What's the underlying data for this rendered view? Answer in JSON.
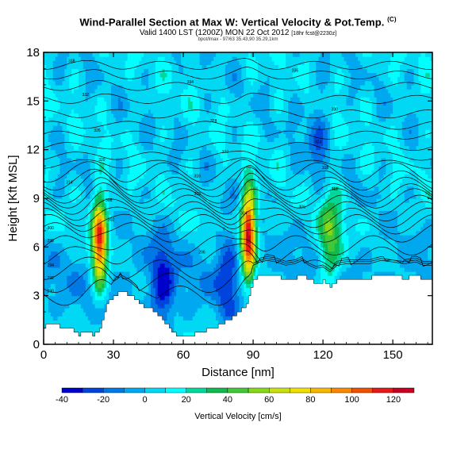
{
  "chart_data": {
    "type": "heatmap",
    "title": "Wind-Parallel Section at Max W: Vertical Velocity & Pot.Temp.",
    "title_suffix": "(C)",
    "subtitle_main": "Valid 1400 LST (1200Z) MON 22 Oct 2012",
    "subtitle_small": "[18hr fcst@2230z]",
    "info_line": "bpot/lmax - 97/63 35.43,90 35.29,1km",
    "xlabel": "Distance [nm]",
    "ylabel": "Height [Kft MSL]",
    "xlim": [
      0,
      167
    ],
    "ylim": [
      0,
      18
    ],
    "xticks": [
      0,
      30,
      60,
      90,
      120,
      150
    ],
    "yticks": [
      0,
      3,
      6,
      9,
      12,
      15,
      18
    ],
    "colorbar": {
      "label": "Vertical Velocity [cm/s]",
      "tick_labels": [
        "-40",
        "-20",
        "0",
        "20",
        "40",
        "60",
        "80",
        "100",
        "120"
      ],
      "bounds": [
        -40,
        -30,
        -20,
        -10,
        0,
        10,
        20,
        30,
        40,
        50,
        60,
        70,
        80,
        90,
        100,
        110,
        120,
        130
      ],
      "colors": [
        "#0000cc",
        "#0044dd",
        "#0078e6",
        "#00a8f0",
        "#00d8f4",
        "#00ffff",
        "#00d89a",
        "#12b850",
        "#40c838",
        "#88d818",
        "#c8e010",
        "#f0e000",
        "#f8b800",
        "#f88800",
        "#f05000",
        "#e81818",
        "#c80020"
      ]
    },
    "velocity_cores": [
      {
        "x_nm": 24,
        "z_kft": 6.3,
        "peak_cm_s": 110
      },
      {
        "x_nm": 88,
        "z_kft": 6.8,
        "peak_cm_s": 125
      },
      {
        "x_nm": 123,
        "z_kft": 6.4,
        "peak_cm_s": 45
      },
      {
        "x_nm": 51,
        "z_kft": 3.5,
        "peak_cm_s": -35
      },
      {
        "x_nm": 79,
        "z_kft": 4.5,
        "peak_cm_s": -25
      },
      {
        "x_nm": 117,
        "z_kft": 12.5,
        "peak_cm_s": -20
      }
    ],
    "terrain_kft": {
      "x_nm": [
        0,
        2,
        5,
        8,
        12,
        15,
        18,
        21,
        24,
        27,
        30,
        33,
        37,
        41,
        45,
        48,
        51,
        54,
        57,
        60,
        64,
        68,
        72,
        76,
        80,
        83,
        86,
        88,
        90,
        93,
        96,
        100,
        104,
        108,
        111,
        114,
        117,
        120,
        123,
        126,
        130,
        135,
        140,
        145,
        150,
        155,
        160,
        163,
        167
      ],
      "height": [
        1.0,
        1.3,
        1.2,
        1.0,
        1.0,
        0.6,
        0.7,
        0.6,
        0.9,
        2.5,
        3.0,
        3.3,
        3.0,
        2.5,
        2.2,
        2.0,
        1.5,
        1.0,
        0.6,
        0.5,
        0.6,
        0.8,
        1.0,
        1.2,
        1.6,
        2.0,
        2.2,
        3.0,
        4.0,
        4.2,
        4.3,
        4.2,
        4.0,
        4.1,
        4.3,
        4.0,
        3.8,
        3.9,
        3.6,
        4.0,
        4.1,
        4.1,
        4.1,
        4.3,
        4.2,
        4.1,
        4.2,
        4.0,
        4.0
      ]
    },
    "isentropes": [
      {
        "label": "290",
        "z_kft": 3.0,
        "x_nm": 0
      },
      {
        "label": "292",
        "z_kft": 3.8,
        "x_nm": 0
      },
      {
        "label": "294",
        "z_kft": 4.6,
        "x_nm": 0
      },
      {
        "label": "296",
        "z_kft": 5.4,
        "x_nm": 65
      },
      {
        "label": "298",
        "z_kft": 6.1,
        "x_nm": 0
      },
      {
        "label": "300",
        "z_kft": 6.9,
        "x_nm": 0
      },
      {
        "label": "302",
        "z_kft": 7.4,
        "x_nm": 26
      },
      {
        "label": "304",
        "z_kft": 7.8,
        "x_nm": 83
      },
      {
        "label": "306",
        "z_kft": 8.2,
        "x_nm": 108
      },
      {
        "label": "308",
        "z_kft": 8.6,
        "x_nm": 25
      },
      {
        "label": "310",
        "z_kft": 9.0,
        "x_nm": 63
      },
      {
        "label": "312",
        "z_kft": 9.3,
        "x_nm": 122
      },
      {
        "label": "314",
        "z_kft": 9.7,
        "x_nm": 8
      },
      {
        "label": "316",
        "z_kft": 10.1,
        "x_nm": 63
      },
      {
        "label": "318",
        "z_kft": 10.6,
        "x_nm": 118
      },
      {
        "label": "320",
        "z_kft": 11.1,
        "x_nm": 22
      },
      {
        "label": "322",
        "z_kft": 11.6,
        "x_nm": 75
      },
      {
        "label": "324",
        "z_kft": 12.2,
        "x_nm": 115
      },
      {
        "label": "326",
        "z_kft": 12.9,
        "x_nm": 20
      },
      {
        "label": "328",
        "z_kft": 13.5,
        "x_nm": 70
      },
      {
        "label": "330",
        "z_kft": 14.2,
        "x_nm": 122
      },
      {
        "label": "332",
        "z_kft": 15.1,
        "x_nm": 15
      },
      {
        "label": "334",
        "z_kft": 15.9,
        "x_nm": 60
      },
      {
        "label": "336",
        "z_kft": 16.6,
        "x_nm": 105
      },
      {
        "label": "338",
        "z_kft": 17.2,
        "x_nm": 9
      }
    ]
  }
}
